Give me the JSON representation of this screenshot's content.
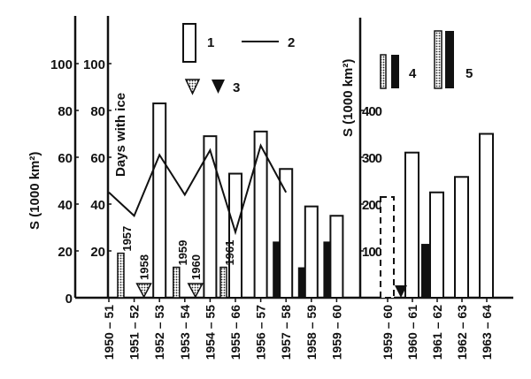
{
  "chart_data": [
    {
      "type": "bar",
      "panel": "left",
      "ylabel_outer": "S (1000 km²)",
      "ylabel_inner": "Days with ice",
      "ylim": [
        0,
        100
      ],
      "yticks": [
        "0",
        "20",
        "40",
        "60",
        "80",
        "100"
      ],
      "yticks_inner": [
        "20",
        "40",
        "60",
        "80",
        "100"
      ],
      "categories": [
        "1950 – 51",
        "1951 – 52",
        "1952 – 53",
        "1953 – 54",
        "1954 – 55",
        "1955 – 66",
        "1956 – 57",
        "1957 – 58",
        "1958 – 59",
        "1959 – 60"
      ],
      "open_bars": [
        {
          "category": "1952 – 53",
          "value": 83
        },
        {
          "category": "1954 – 55",
          "value": 69
        },
        {
          "category": "1955 – 66",
          "value": 53
        },
        {
          "category": "1956 – 57",
          "value": 71
        },
        {
          "category": "1957 – 58",
          "value": 55
        },
        {
          "category": "1958 – 59",
          "value": 39
        },
        {
          "category": "1959 – 60",
          "value": 35
        }
      ],
      "days_line": {
        "categories": [
          "1950 – 51",
          "1951 – 52",
          "1952 – 53",
          "1953 – 54",
          "1954 – 55",
          "1955 – 66",
          "1956 – 57",
          "1957 – 58"
        ],
        "values": [
          45,
          35,
          61,
          44,
          63,
          28,
          65,
          45
        ]
      },
      "dotted_bars": [
        {
          "category": "1950 – 51",
          "value": 19,
          "label": "1957"
        },
        {
          "category": "1953 – 54",
          "value": 13,
          "label": "1959"
        },
        {
          "category": "1955 – 66",
          "value": 13,
          "label": "1961"
        }
      ],
      "hatched_triangles": [
        {
          "category": "1951 – 52",
          "label": "1958"
        },
        {
          "category": "1953 – 54",
          "label": "1960"
        }
      ],
      "black_bars": [
        {
          "category": "1957 – 58",
          "value": 24
        },
        {
          "category": "1958 – 59",
          "value": 13
        },
        {
          "category": "1959 – 60",
          "value": 24
        }
      ]
    },
    {
      "type": "bar",
      "panel": "right",
      "ylabel": "S (1000 km²)",
      "ylim": [
        0,
        400
      ],
      "yticks": [
        "100",
        "200",
        "300",
        "400"
      ],
      "categories": [
        "1959 – 60",
        "1960 – 61",
        "1961 – 62",
        "1962 – 63",
        "1963 – 64"
      ],
      "open_bars": [
        {
          "category": "1959 – 60",
          "value": 215,
          "style": "dashed"
        },
        {
          "category": "1960 – 61",
          "value": 310
        },
        {
          "category": "1961 – 62",
          "value": 225
        },
        {
          "category": "1962 – 63",
          "value": 258
        },
        {
          "category": "1963 – 64",
          "value": 350
        }
      ],
      "black_bars": [
        {
          "category": "1961 – 62",
          "value": 115
        }
      ],
      "black_triangles": [
        {
          "category": "1959 – 60"
        }
      ]
    }
  ],
  "legend": {
    "item1": "1",
    "item2": "2",
    "item3": "3",
    "item4": "4",
    "item5": "5"
  }
}
